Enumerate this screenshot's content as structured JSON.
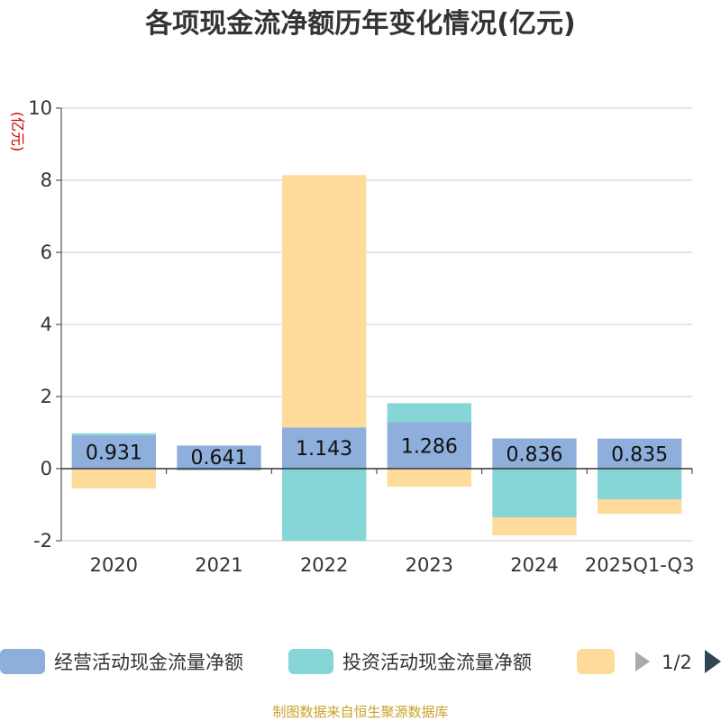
{
  "chart_data": {
    "type": "bar",
    "stacked": true,
    "title": "各项现金流净额历年变化情况(亿元)",
    "ylabel": "(亿元)",
    "ylim": [
      -2,
      10
    ],
    "yticks": [
      -2,
      0,
      2,
      4,
      6,
      8,
      10
    ],
    "categories": [
      "2020",
      "2021",
      "2022",
      "2023",
      "2024",
      "2025Q1-Q3"
    ],
    "series": [
      {
        "name": "经营活动现金流量净额",
        "color": "#8eaedb",
        "values": [
          0.931,
          0.641,
          1.143,
          1.286,
          0.836,
          0.835
        ],
        "labels": [
          "0.931",
          "0.641",
          "1.143",
          "1.286",
          "0.836",
          "0.835"
        ]
      },
      {
        "name": "投资活动现金流量净额",
        "color": "#86d5d7",
        "values": [
          0.05,
          -0.05,
          -2.0,
          0.53,
          -1.35,
          -0.85
        ]
      },
      {
        "name": "",
        "color": "#fedb9a",
        "values": [
          -0.55,
          0.0,
          7.0,
          -0.5,
          -0.5,
          -0.4
        ]
      }
    ],
    "legend": {
      "position": "bottom",
      "page": "1/2"
    },
    "grid": true
  },
  "source": "制图数据来自恒生聚源数据库"
}
